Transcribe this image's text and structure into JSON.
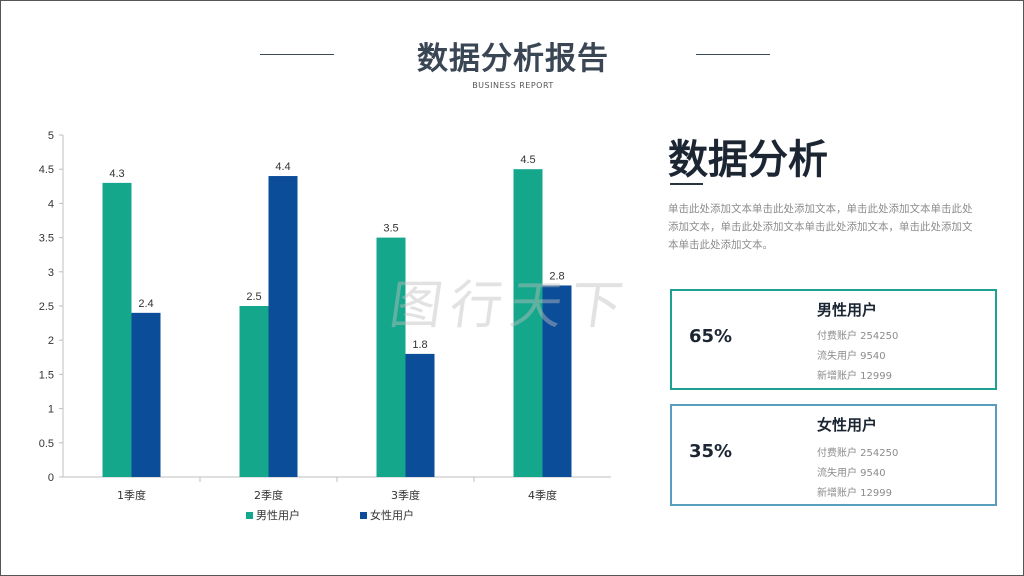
{
  "header": {
    "title": "数据分析报告",
    "subtitle": "BUSINESS REPORT"
  },
  "watermark": "图行天下",
  "side": {
    "title": "数据分析",
    "body": "单击此处添加文本单击此处添加文本，单击此处添加文本单击此处添加文本，单击此处添加文本单击此处添加文本，单击此处添加文本单击此处添加文本。"
  },
  "stats": [
    {
      "percent": "65%",
      "name": "男性用户",
      "lines": [
        "付费账户 254250",
        "流失用户 9540",
        "新增账户 12999"
      ],
      "border_color": "#1fa192"
    },
    {
      "percent": "35%",
      "name": "女性用户",
      "lines": [
        "付费账户 254250",
        "流失用户 9540",
        "新增账户 12999"
      ],
      "border_color": "#5a9ebf"
    }
  ],
  "chart_data": {
    "type": "bar",
    "categories": [
      "1季度",
      "2季度",
      "3季度",
      "4季度"
    ],
    "series": [
      {
        "name": "男性用户",
        "values": [
          4.3,
          2.5,
          3.5,
          4.5
        ],
        "color": "#14a78c"
      },
      {
        "name": "女性用户",
        "values": [
          2.4,
          4.4,
          1.8,
          2.8
        ],
        "color": "#0b4d98"
      }
    ],
    "ylim": [
      0,
      5
    ],
    "yticks": [
      "0",
      "0.5",
      "1",
      "1.5",
      "2",
      "2.5",
      "3",
      "3.5",
      "4",
      "4.5",
      "5"
    ],
    "grid": false,
    "legend": "bottom"
  }
}
